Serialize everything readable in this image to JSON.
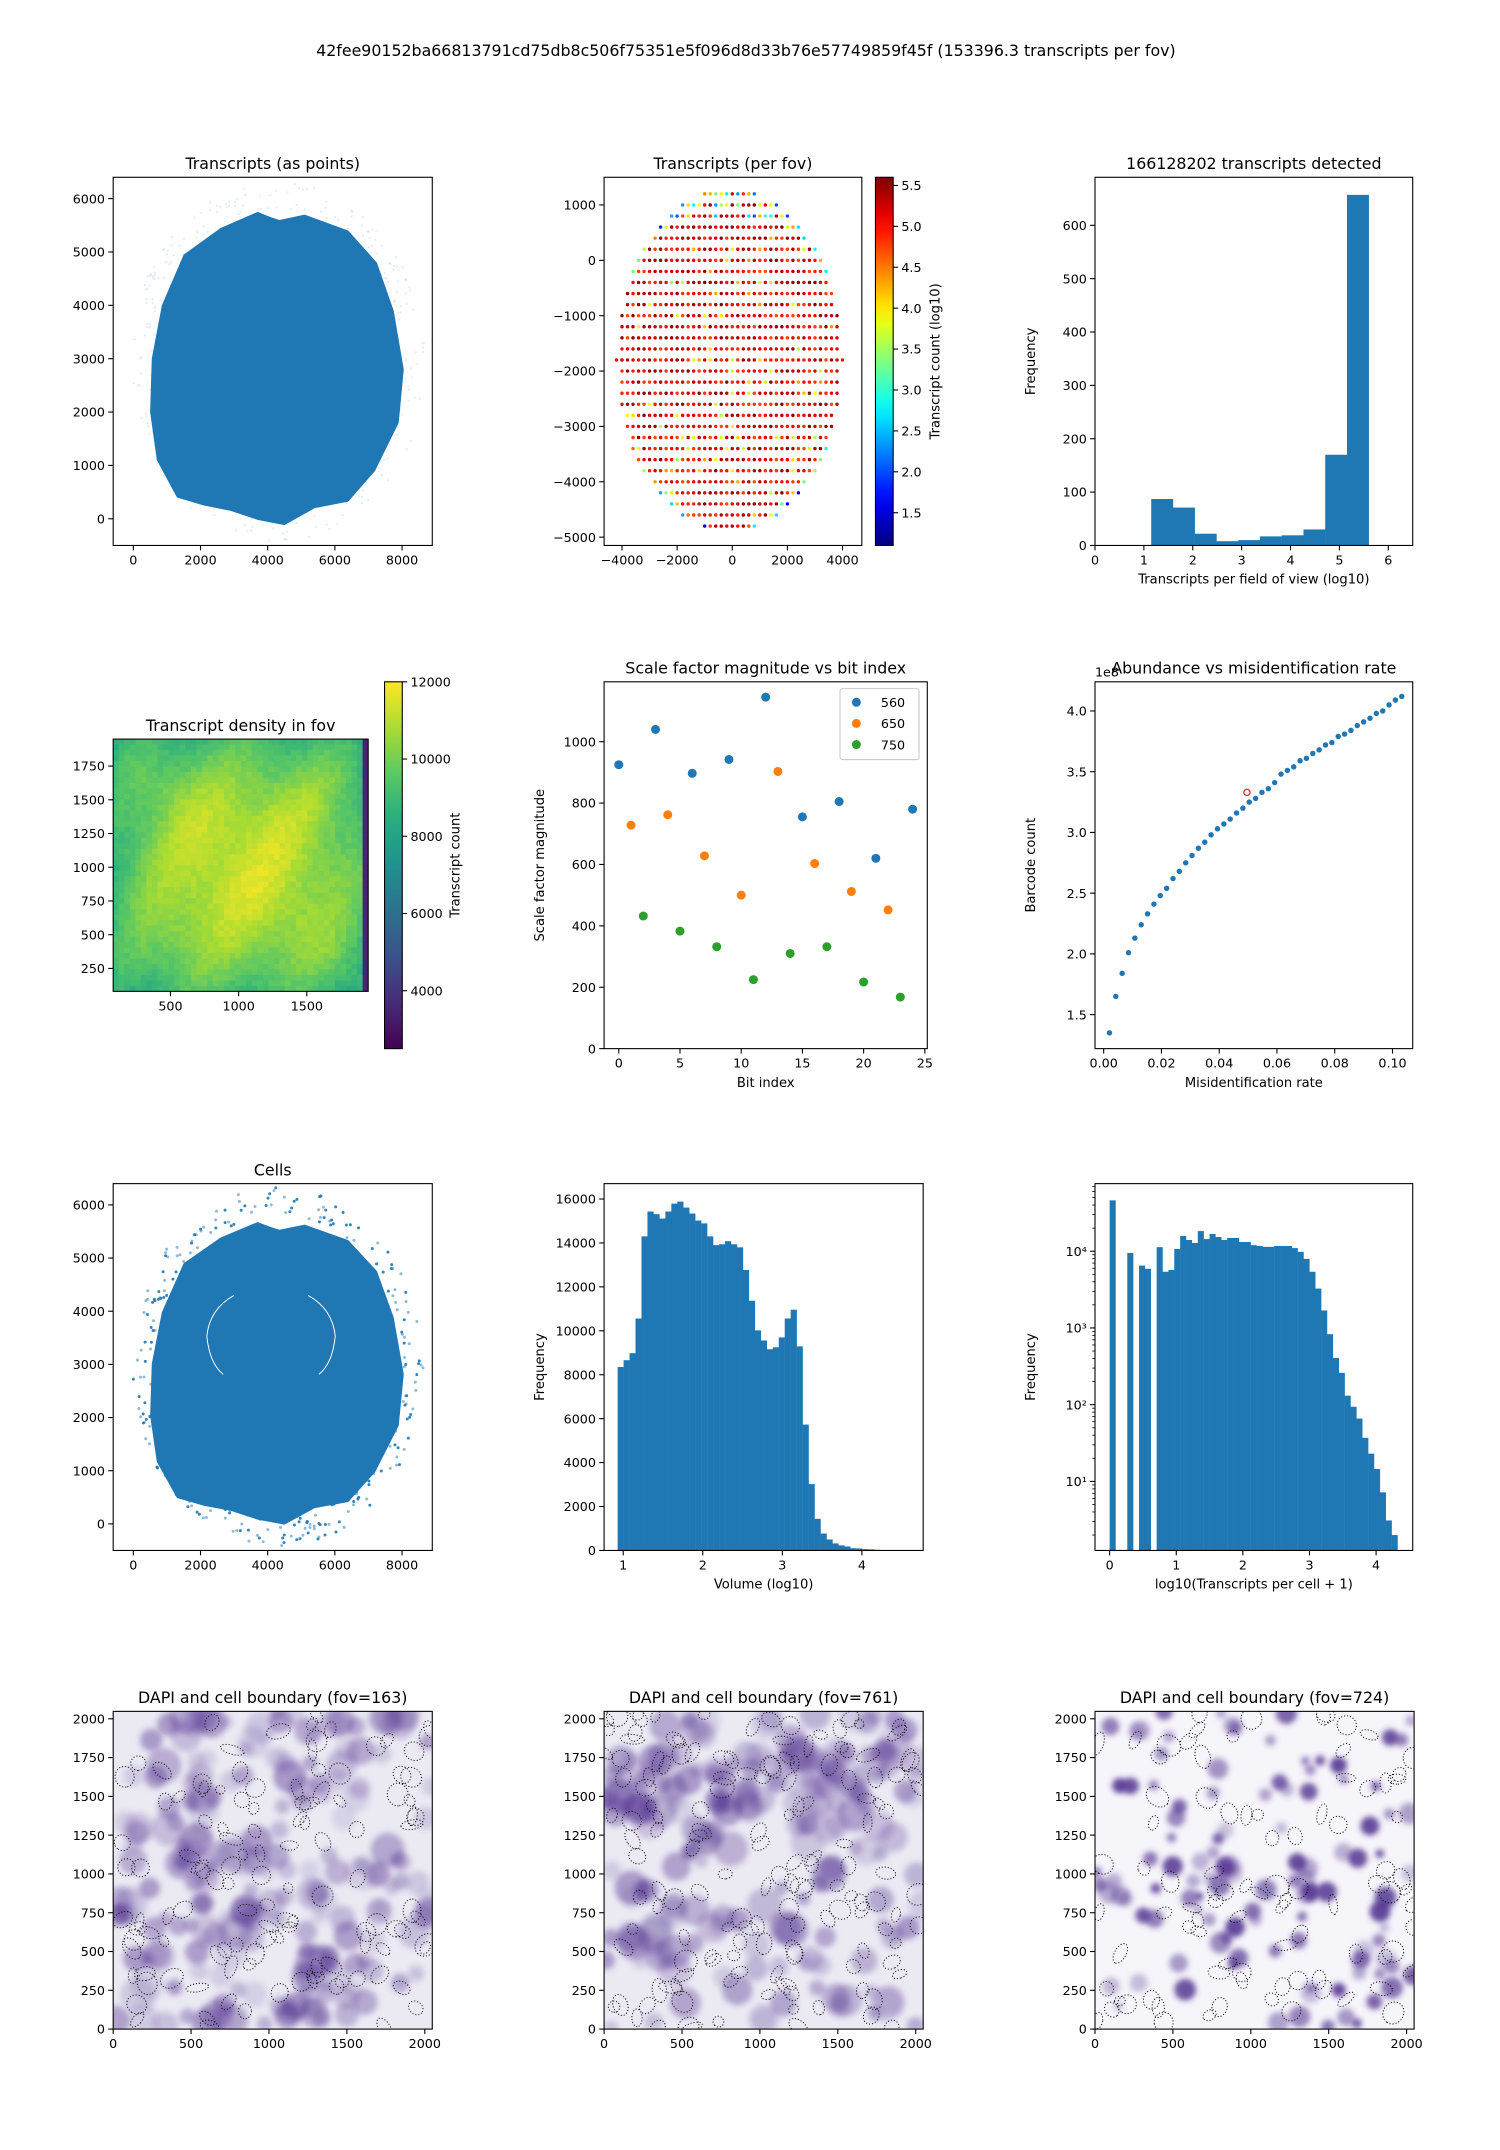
{
  "figure_title": "42fee90152ba66813791cd75db8c506f75351e5f096d8d33b76e57749859f45f (153396.3 transcripts per fov)",
  "chart_data": [
    {
      "type": "scatter",
      "title": "Transcripts (as points)",
      "xlabel": "",
      "ylabel": "",
      "xlim": [
        -600,
        8900
      ],
      "ylim": [
        -500,
        6400
      ],
      "xticks": [
        "0",
        "2000",
        "4000",
        "6000",
        "8000"
      ],
      "yticks": [
        "0",
        "1000",
        "2000",
        "3000",
        "4000",
        "5000",
        "6000"
      ],
      "color": "#1f77b4"
    },
    {
      "type": "scatter",
      "title": "Transcripts (per fov)",
      "xlabel": "",
      "ylabel": "",
      "xlim": [
        -4650,
        4700
      ],
      "ylim": [
        -5150,
        1500
      ],
      "xticks": [
        "−4000",
        "−2000",
        "0",
        "2000",
        "4000"
      ],
      "yticks": [
        "−5000",
        "−4000",
        "−3000",
        "−2000",
        "−1000",
        "0",
        "1000"
      ],
      "grid_spacing": 200,
      "colorbar": {
        "label": "Transcript count (log10)",
        "ticks": [
          "1.5",
          "2.0",
          "2.5",
          "3.0",
          "3.5",
          "4.0",
          "4.5",
          "5.0",
          "5.5"
        ],
        "range": [
          1.1,
          5.6
        ],
        "colormap": "jet"
      }
    },
    {
      "type": "bar",
      "title": "166128202 transcripts detected",
      "xlabel": "Transcripts per field of view (log10)",
      "ylabel": "Frequency",
      "xlim": [
        0,
        6.5
      ],
      "ylim": [
        0,
        690
      ],
      "xticks": [
        "0",
        "1",
        "2",
        "3",
        "4",
        "5",
        "6"
      ],
      "yticks": [
        "0",
        "100",
        "200",
        "300",
        "400",
        "500",
        "600"
      ],
      "bin_start": 1.15,
      "bin_width": 0.445,
      "values": [
        87,
        71,
        22,
        8,
        10,
        17,
        19,
        30,
        170,
        657
      ],
      "color": "#1f77b4"
    },
    {
      "type": "heatmap",
      "title": "Transcript density in fov",
      "xlabel": "",
      "ylabel": "",
      "xlim": [
        80,
        1950
      ],
      "ylim": [
        80,
        1950
      ],
      "xticks": [
        "500",
        "1000",
        "1500"
      ],
      "yticks": [
        "250",
        "500",
        "750",
        "1000",
        "1250",
        "1500",
        "1750"
      ],
      "value_range_center": [
        9000,
        11800
      ],
      "colorbar": {
        "label": "Transcript count",
        "ticks": [
          "4000",
          "6000",
          "8000",
          "10000",
          "12000"
        ],
        "range": [
          2500,
          12000
        ],
        "colormap": "viridis"
      }
    },
    {
      "type": "scatter",
      "title": "Scale factor magnitude vs bit index",
      "xlabel": "Bit index",
      "ylabel": "Scale factor magnitude",
      "xlim": [
        -1.2,
        25.2
      ],
      "ylim": [
        0,
        1195
      ],
      "xticks": [
        "0",
        "5",
        "10",
        "15",
        "20",
        "25"
      ],
      "yticks": [
        "0",
        "200",
        "400",
        "600",
        "800",
        "1000"
      ],
      "legend": "top-right",
      "series": [
        {
          "name": "560",
          "color": "#1f77b4",
          "x": [
            0,
            3,
            6,
            9,
            12,
            15,
            18,
            21,
            24
          ],
          "y": [
            925,
            1040,
            897,
            942,
            1145,
            755,
            805,
            620,
            780
          ]
        },
        {
          "name": "650",
          "color": "#ff7f0e",
          "x": [
            1,
            4,
            7,
            10,
            13,
            16,
            19,
            22
          ],
          "y": [
            728,
            762,
            628,
            500,
            903,
            603,
            512,
            452
          ]
        },
        {
          "name": "750",
          "color": "#2ca02c",
          "x": [
            2,
            5,
            8,
            11,
            14,
            17,
            20,
            23
          ],
          "y": [
            432,
            383,
            332,
            225,
            310,
            332,
            217,
            168
          ]
        }
      ]
    },
    {
      "type": "scatter",
      "title": "Abundance vs misidentification rate",
      "xlabel": "Misidentification rate",
      "ylabel": "Barcode count",
      "offset_text": "1e8",
      "xlim": [
        -0.003,
        0.107
      ],
      "ylim": [
        1.22,
        4.24
      ],
      "xticks": [
        "0.00",
        "0.02",
        "0.04",
        "0.06",
        "0.08",
        "0.10"
      ],
      "yticks": [
        "1.5",
        "2.0",
        "2.5",
        "3.0",
        "3.5",
        "4.0"
      ],
      "color": "#1f77b4",
      "x": [
        0.002,
        0.0042,
        0.0064,
        0.0086,
        0.0108,
        0.013,
        0.0152,
        0.0174,
        0.0196,
        0.0218,
        0.024,
        0.0262,
        0.0284,
        0.0306,
        0.0328,
        0.035,
        0.0372,
        0.0394,
        0.0416,
        0.0438,
        0.046,
        0.0482,
        0.0504,
        0.0526,
        0.0548,
        0.057,
        0.0592,
        0.0614,
        0.0636,
        0.0658,
        0.068,
        0.0702,
        0.0724,
        0.0746,
        0.0768,
        0.079,
        0.0812,
        0.0834,
        0.0856,
        0.0878,
        0.09,
        0.0922,
        0.0944,
        0.0966,
        0.0988,
        0.101,
        0.1032
      ],
      "y": [
        1.35,
        1.65,
        1.84,
        2.01,
        2.13,
        2.24,
        2.33,
        2.41,
        2.48,
        2.54,
        2.62,
        2.68,
        2.75,
        2.81,
        2.87,
        2.92,
        2.98,
        3.03,
        3.07,
        3.11,
        3.16,
        3.2,
        3.25,
        3.28,
        3.33,
        3.36,
        3.41,
        3.48,
        3.51,
        3.54,
        3.59,
        3.61,
        3.65,
        3.68,
        3.72,
        3.74,
        3.79,
        3.81,
        3.84,
        3.88,
        3.91,
        3.94,
        3.98,
        4.0,
        4.05,
        4.09,
        4.12
      ],
      "highlight": {
        "x": 0.0496,
        "y": 3.33,
        "color": "#d62728"
      }
    },
    {
      "type": "scatter",
      "title": "Cells",
      "xlabel": "",
      "ylabel": "",
      "xlim": [
        -600,
        8900
      ],
      "ylim": [
        -500,
        6400
      ],
      "xticks": [
        "0",
        "2000",
        "4000",
        "6000",
        "8000"
      ],
      "yticks": [
        "0",
        "1000",
        "2000",
        "3000",
        "4000",
        "5000",
        "6000"
      ],
      "color": "#1f77b4"
    },
    {
      "type": "bar",
      "title": "",
      "xlabel": "Volume (log10)",
      "ylabel": "Frequency",
      "xlim": [
        0.76,
        4.77
      ],
      "ylim": [
        0,
        16700
      ],
      "xticks": [
        "1",
        "2",
        "3",
        "4"
      ],
      "yticks": [
        "0",
        "2000",
        "4000",
        "6000",
        "8000",
        "10000",
        "12000",
        "14000",
        "16000"
      ],
      "bin_start": 0.93,
      "bin_width": 0.075,
      "values": [
        8350,
        8660,
        8980,
        10560,
        14300,
        15430,
        15310,
        15110,
        15430,
        15790,
        15880,
        15610,
        15340,
        15020,
        14890,
        14300,
        13900,
        13940,
        14080,
        13940,
        13800,
        12770,
        11370,
        10020,
        9560,
        9160,
        9250,
        9700,
        10560,
        10960,
        9290,
        5730,
        3020,
        1440,
        770,
        500,
        320,
        230,
        180,
        100,
        90,
        60,
        50,
        30,
        20,
        10,
        10,
        5,
        3
      ],
      "color": "#1f77b4"
    },
    {
      "type": "bar",
      "title": "",
      "xlabel": "log10(Transcripts per cell + 1)",
      "ylabel": "Frequency",
      "yscale": "log",
      "xlim": [
        -0.22,
        4.55
      ],
      "ylim": [
        1.26,
        76000
      ],
      "xticks": [
        "0",
        "1",
        "2",
        "3",
        "4"
      ],
      "yticks": [
        "10¹",
        "10²",
        "10³",
        "10⁴"
      ],
      "ytick_values": [
        10,
        100,
        1000,
        10000
      ],
      "bin_start": 0,
      "bin_width": 0.0882,
      "values": [
        46000,
        0,
        0,
        9500,
        0,
        6500,
        5900,
        0,
        11300,
        5400,
        5700,
        10700,
        15800,
        14000,
        12800,
        18300,
        14400,
        16800,
        15300,
        14000,
        14900,
        14900,
        13200,
        13200,
        12000,
        11700,
        11400,
        11400,
        11700,
        11700,
        11700,
        11000,
        9800,
        7950,
        5400,
        3260,
        1690,
        830,
        407,
        260,
        131,
        94,
        66,
        37,
        23,
        14.5,
        7.2,
        3.1,
        2.0
      ],
      "color": "#1f77b4"
    },
    {
      "type": "image",
      "title": "DAPI and cell boundary (fov=163)",
      "xlim": [
        0,
        2048
      ],
      "ylim": [
        0,
        2048
      ],
      "xticks": [
        "0",
        "500",
        "1000",
        "1500",
        "2000"
      ],
      "yticks": [
        "0",
        "250",
        "500",
        "750",
        "1000",
        "1250",
        "1500",
        "1750",
        "2000"
      ]
    },
    {
      "type": "image",
      "title": "DAPI and cell boundary (fov=761)",
      "xlim": [
        0,
        2048
      ],
      "ylim": [
        0,
        2048
      ],
      "xticks": [
        "0",
        "500",
        "1000",
        "1500",
        "2000"
      ],
      "yticks": [
        "0",
        "250",
        "500",
        "750",
        "1000",
        "1250",
        "1500",
        "1750",
        "2000"
      ]
    },
    {
      "type": "image",
      "title": "DAPI and cell boundary (fov=724)",
      "xlim": [
        0,
        2048
      ],
      "ylim": [
        0,
        2048
      ],
      "xticks": [
        "0",
        "500",
        "1000",
        "1500",
        "2000"
      ],
      "yticks": [
        "0",
        "250",
        "500",
        "750",
        "1000",
        "1250",
        "1500",
        "1750",
        "2000"
      ]
    }
  ]
}
